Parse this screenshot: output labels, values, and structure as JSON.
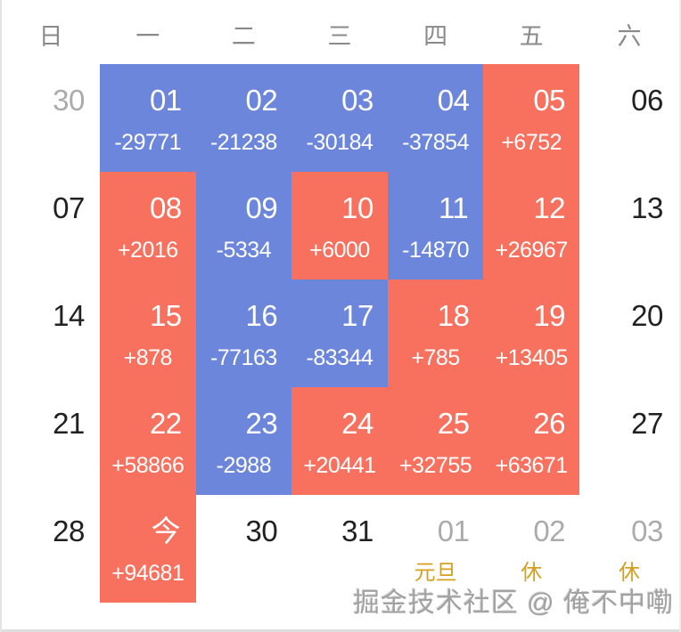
{
  "weekdays": [
    "日",
    "一",
    "二",
    "三",
    "四",
    "五",
    "六"
  ],
  "watermark": "掘金技术社区 @ 俺不中嘞",
  "colors": {
    "gain": "#F8705E",
    "loss": "#6C86DB",
    "holiday_label": "#D5A021",
    "muted_day": "#ABABAB",
    "weekday_header": "#8A8A8A"
  },
  "calendar": {
    "rows": [
      [
        {
          "day": "30",
          "type": "prev"
        },
        {
          "day": "01",
          "value": "-29771",
          "type": "loss"
        },
        {
          "day": "02",
          "value": "-21238",
          "type": "loss"
        },
        {
          "day": "03",
          "value": "-30184",
          "type": "loss"
        },
        {
          "day": "04",
          "value": "-37854",
          "type": "loss"
        },
        {
          "day": "05",
          "value": "+6752",
          "type": "gain"
        },
        {
          "day": "06",
          "type": "plain"
        }
      ],
      [
        {
          "day": "07",
          "type": "plain"
        },
        {
          "day": "08",
          "value": "+2016",
          "type": "gain"
        },
        {
          "day": "09",
          "value": "-5334",
          "type": "loss"
        },
        {
          "day": "10",
          "value": "+6000",
          "type": "gain"
        },
        {
          "day": "11",
          "value": "-14870",
          "type": "loss"
        },
        {
          "day": "12",
          "value": "+26967",
          "type": "gain"
        },
        {
          "day": "13",
          "type": "plain"
        }
      ],
      [
        {
          "day": "14",
          "type": "plain"
        },
        {
          "day": "15",
          "value": "+878",
          "type": "gain"
        },
        {
          "day": "16",
          "value": "-77163",
          "type": "loss"
        },
        {
          "day": "17",
          "value": "-83344",
          "type": "loss"
        },
        {
          "day": "18",
          "value": "+785",
          "type": "gain"
        },
        {
          "day": "19",
          "value": "+13405",
          "type": "gain"
        },
        {
          "day": "20",
          "type": "plain"
        }
      ],
      [
        {
          "day": "21",
          "type": "plain"
        },
        {
          "day": "22",
          "value": "+58866",
          "type": "gain"
        },
        {
          "day": "23",
          "value": "-2988",
          "type": "loss"
        },
        {
          "day": "24",
          "value": "+20441",
          "type": "gain"
        },
        {
          "day": "25",
          "value": "+32755",
          "type": "gain"
        },
        {
          "day": "26",
          "value": "+63671",
          "type": "gain"
        },
        {
          "day": "27",
          "type": "plain"
        }
      ],
      [
        {
          "day": "28",
          "type": "plain"
        },
        {
          "day": "今",
          "value": "+94681",
          "type": "gain",
          "today": true
        },
        {
          "day": "30",
          "type": "plain"
        },
        {
          "day": "31",
          "type": "plain"
        },
        {
          "day": "01",
          "value": "元旦",
          "type": "next"
        },
        {
          "day": "02",
          "value": "休",
          "type": "next"
        },
        {
          "day": "03",
          "value": "休",
          "type": "next"
        }
      ]
    ]
  }
}
